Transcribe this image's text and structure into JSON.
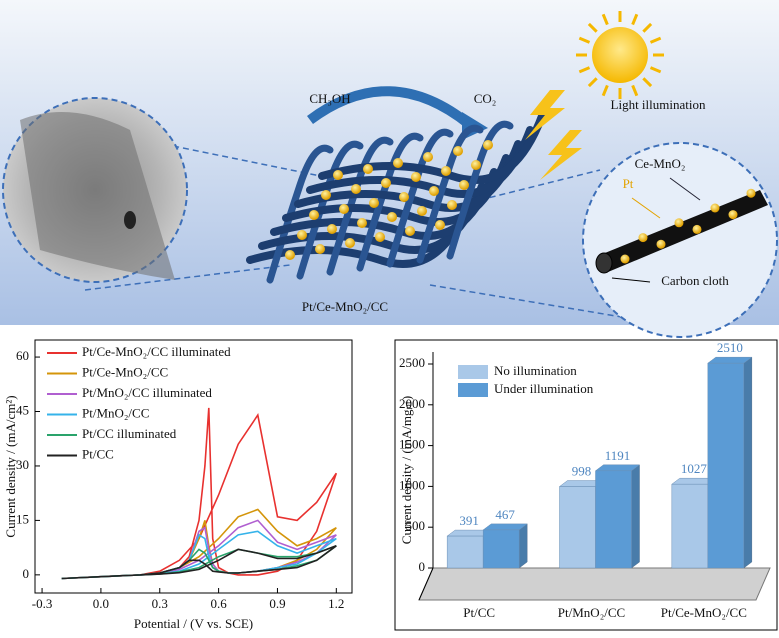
{
  "diagram": {
    "labels": {
      "ch3oh": "CH₃OH",
      "co2": "CO₂",
      "light": "Light illumination",
      "ce_mno2": "Ce-MnO₂",
      "pt": "Pt",
      "carbon_cloth": "Carbon cloth",
      "catalyst": "Pt/Ce-MnO₂/CC"
    }
  },
  "chart_data": [
    {
      "type": "line",
      "xlabel": "Potential / (V vs. SCE)",
      "ylabel": "Current density / (mA/cm²)",
      "xlim": [
        -0.336,
        1.28
      ],
      "ylim": [
        -5,
        64.7
      ],
      "xticks": [
        -0.3,
        {
          "value": 0,
          "label": "0.0"
        },
        0.3,
        0.6,
        0.9,
        1.2
      ],
      "yticks": [
        0,
        15,
        30,
        45,
        60
      ],
      "x": [
        -0.2,
        0,
        0.2,
        0.3,
        0.4,
        0.5,
        0.6,
        0.7,
        0.8,
        0.9,
        1.0,
        1.1,
        1.2,
        1.1,
        1.0,
        0.9,
        0.8,
        0.7,
        0.65,
        0.6,
        0.57,
        0.55,
        0.53,
        0.5,
        0.45,
        0.4,
        0.3,
        0.2,
        0,
        -0.2
      ],
      "series": [
        {
          "name": "Pt/Ce-MnO₂/CC illuminated",
          "color": "#e8312f",
          "values": [
            -1,
            -0.5,
            0,
            1,
            4,
            10,
            22,
            36,
            44,
            16,
            15,
            20,
            28,
            12,
            4,
            1,
            0,
            0,
            0.5,
            2,
            10,
            46,
            30,
            15,
            5,
            2,
            0.5,
            0,
            -0.5,
            -1
          ]
        },
        {
          "name": "Pt/Ce-MnO₂/CC",
          "color": "#d4950a",
          "values": [
            -1,
            -0.5,
            0,
            0.5,
            2,
            5,
            10,
            16,
            18,
            12,
            8,
            10,
            13,
            7,
            4,
            2,
            1,
            0.5,
            0.5,
            1,
            3,
            8,
            15,
            10,
            4,
            2,
            0.5,
            0,
            -0.5,
            -1
          ]
        },
        {
          "name": "Pt/MnO₂/CC illuminated",
          "color": "#b05fd0",
          "values": [
            -1,
            -0.5,
            0,
            0.3,
            1.5,
            4,
            8,
            13,
            15,
            9,
            7,
            9,
            11,
            6,
            3.5,
            2,
            1,
            0.5,
            0.5,
            1,
            3,
            7,
            13,
            12,
            4,
            2,
            0.5,
            0,
            -0.5,
            -1
          ]
        },
        {
          "name": "Pt/MnO₂/CC",
          "color": "#35b3ea",
          "values": [
            -1,
            -0.5,
            0,
            0.3,
            1,
            3,
            7,
            11,
            12,
            8,
            6,
            8,
            10,
            6,
            3,
            2,
            1,
            0.5,
            0.5,
            1,
            2,
            5,
            10,
            11,
            4,
            2,
            0.5,
            0,
            -0.5,
            -1
          ]
        },
        {
          "name": "Pt/CC illuminated",
          "color": "#2aa36b",
          "values": [
            -1,
            -0.5,
            0,
            0.2,
            0.8,
            2,
            5,
            7,
            6,
            5,
            5,
            6,
            8,
            4,
            2.5,
            1.5,
            1,
            0.5,
            0.5,
            1,
            2,
            4,
            6,
            7,
            4,
            2,
            0.5,
            0,
            -0.5,
            -1
          ]
        },
        {
          "name": "Pt/CC",
          "color": "#222222",
          "values": [
            -1,
            -0.5,
            0,
            0.2,
            0.6,
            1.5,
            4,
            7,
            6,
            4.5,
            4.5,
            6,
            8,
            4,
            2,
            1.5,
            1,
            0.5,
            0.5,
            0.8,
            1,
            2,
            3,
            4,
            4,
            2,
            0.5,
            0,
            -0.5,
            -1
          ]
        }
      ]
    },
    {
      "type": "bar",
      "ylabel": "Current density / (mA/mgₚₜ)",
      "ylim": [
        0,
        2647
      ],
      "yticks": [
        0,
        500,
        1000,
        1500,
        2000,
        2500
      ],
      "categories": [
        "Pt/CC",
        "Pt/MnO₂/CC",
        "Pt/Ce-MnO₂/CC"
      ],
      "series": [
        {
          "name": "No illumination",
          "color": "#a9c8e8",
          "values": [
            391,
            998,
            1027
          ]
        },
        {
          "name": "Under illumination",
          "color": "#5b9bd5",
          "values": [
            467,
            1191,
            2510
          ]
        }
      ]
    }
  ]
}
